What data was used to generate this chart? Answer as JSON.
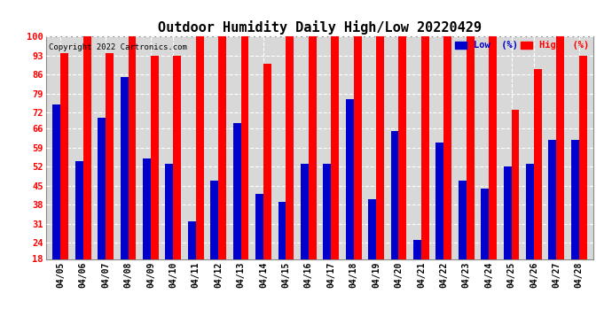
{
  "title": "Outdoor Humidity Daily High/Low 20220429",
  "copyright": "Copyright 2022 Cartronics.com",
  "categories": [
    "04/05",
    "04/06",
    "04/07",
    "04/08",
    "04/09",
    "04/10",
    "04/11",
    "04/12",
    "04/13",
    "04/14",
    "04/15",
    "04/16",
    "04/17",
    "04/18",
    "04/19",
    "04/20",
    "04/21",
    "04/22",
    "04/23",
    "04/24",
    "04/25",
    "04/26",
    "04/27",
    "04/28"
  ],
  "high_values": [
    94,
    100,
    94,
    100,
    93,
    93,
    100,
    100,
    100,
    90,
    100,
    100,
    100,
    100,
    100,
    100,
    100,
    100,
    100,
    100,
    73,
    88,
    100,
    93
  ],
  "low_values": [
    75,
    54,
    70,
    85,
    55,
    53,
    32,
    47,
    68,
    42,
    39,
    53,
    53,
    77,
    40,
    65,
    25,
    61,
    47,
    44,
    52,
    53,
    62,
    62
  ],
  "high_color": "#ff0000",
  "low_color": "#0000cc",
  "bg_color": "#ffffff",
  "plot_bg_color": "#d8d8d8",
  "grid_color": "#ffffff",
  "ylim_min": 18,
  "ylim_max": 100,
  "yticks": [
    18,
    24,
    31,
    38,
    45,
    52,
    59,
    66,
    72,
    79,
    86,
    93,
    100
  ],
  "title_fontsize": 11,
  "legend_low_label": "Low  (%)",
  "legend_high_label": "High  (%)"
}
